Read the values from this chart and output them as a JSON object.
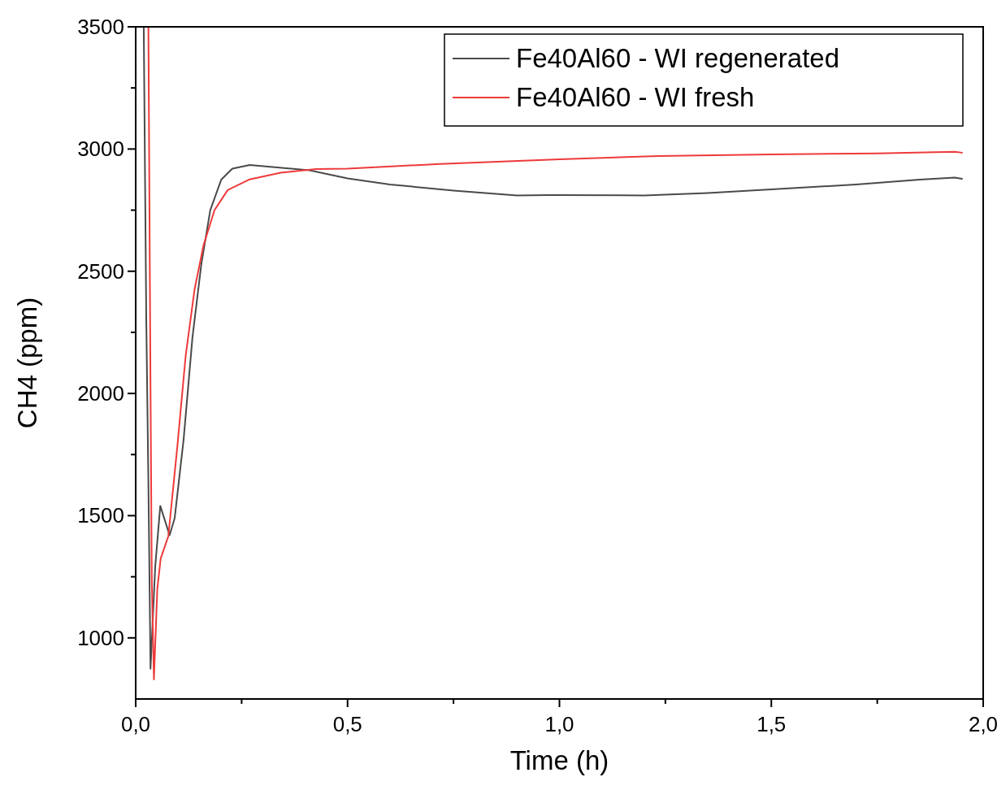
{
  "chart_data": {
    "type": "line",
    "xlabel": "Time (h)",
    "ylabel": "CH4 (ppm)",
    "xlim": [
      0,
      2
    ],
    "ylim": [
      750,
      3500
    ],
    "xticks": [
      {
        "value": 0,
        "label": "0,0"
      },
      {
        "value": 0.25,
        "label": null
      },
      {
        "value": 0.5,
        "label": "0,5"
      },
      {
        "value": 0.75,
        "label": null
      },
      {
        "value": 1,
        "label": "1,0"
      },
      {
        "value": 1.25,
        "label": null
      },
      {
        "value": 1.5,
        "label": "1,5"
      },
      {
        "value": 1.75,
        "label": null
      },
      {
        "value": 2,
        "label": "2,0"
      }
    ],
    "yticks": [
      1000,
      {
        "value": 1250,
        "label": null
      },
      1500,
      {
        "value": 1750,
        "label": null
      },
      2000,
      {
        "value": 2250,
        "label": null
      },
      2500,
      {
        "value": 2750,
        "label": null
      },
      3000,
      {
        "value": 3250,
        "label": null
      },
      3500
    ],
    "grid": false,
    "legend": "top right",
    "line_style": "solid",
    "marker": "none",
    "series": [
      {
        "name": "Fe40Al60 - WI regenerated",
        "color": "#4a4a4a",
        "x": [
          0.019,
          0.025,
          0.03,
          0.035,
          0.046,
          0.058,
          0.08,
          0.092,
          0.113,
          0.134,
          0.155,
          0.176,
          0.202,
          0.228,
          0.269,
          0.41,
          0.5,
          0.6,
          0.75,
          0.9,
          0.975,
          1.2,
          1.35,
          1.5,
          1.7,
          1.85,
          1.933,
          1.95
        ],
        "values": [
          3500,
          2300,
          1630,
          874,
          1290,
          1540,
          1420,
          1490,
          1810,
          2230,
          2530,
          2750,
          2875,
          2920,
          2935,
          2913,
          2880,
          2855,
          2830,
          2810,
          2812,
          2810,
          2820,
          2835,
          2855,
          2875,
          2883,
          2878
        ]
      },
      {
        "name": "Fe40Al60 - WI fresh",
        "color": "#ee3a3a",
        "x": [
          0.03,
          0.035,
          0.038,
          0.043,
          0.051,
          0.059,
          0.077,
          0.098,
          0.118,
          0.139,
          0.16,
          0.186,
          0.217,
          0.269,
          0.342,
          0.426,
          0.5,
          0.718,
          1.0,
          1.232,
          1.5,
          1.75,
          1.933,
          1.95
        ],
        "values": [
          3500,
          2010,
          1236,
          830,
          1200,
          1325,
          1416,
          1778,
          2155,
          2426,
          2606,
          2750,
          2832,
          2876,
          2903,
          2918,
          2920,
          2939,
          2958,
          2971,
          2978,
          2982,
          2989,
          2985
        ]
      }
    ]
  }
}
